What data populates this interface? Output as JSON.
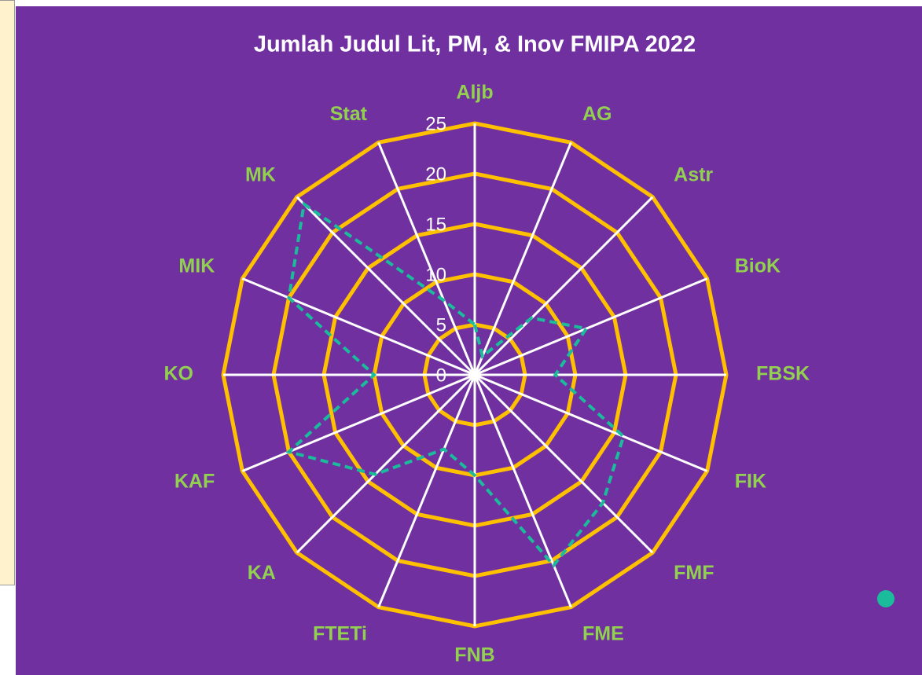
{
  "chart_data": {
    "type": "radar",
    "title": "Jumlah Judul Lit, PM, & Inov FMIPA 2022",
    "categories": [
      "Aljb",
      "AG",
      "Astr",
      "BioK",
      "FBSK",
      "FIK",
      "FMF",
      "FME",
      "FNB",
      "FTETi",
      "KA",
      "KAF",
      "KO",
      "MIK",
      "MK",
      "Stat"
    ],
    "values": [
      5,
      2,
      8,
      12,
      8,
      16,
      18,
      20.5,
      10,
      8,
      14,
      20,
      10,
      20,
      24,
      8
    ],
    "color": "#1abc9c",
    "grid_color": "#ffc000",
    "spoke_color": "#ffffff",
    "rlim": [
      0,
      25
    ],
    "rticks": [
      0,
      5,
      10,
      15,
      20,
      25
    ]
  }
}
